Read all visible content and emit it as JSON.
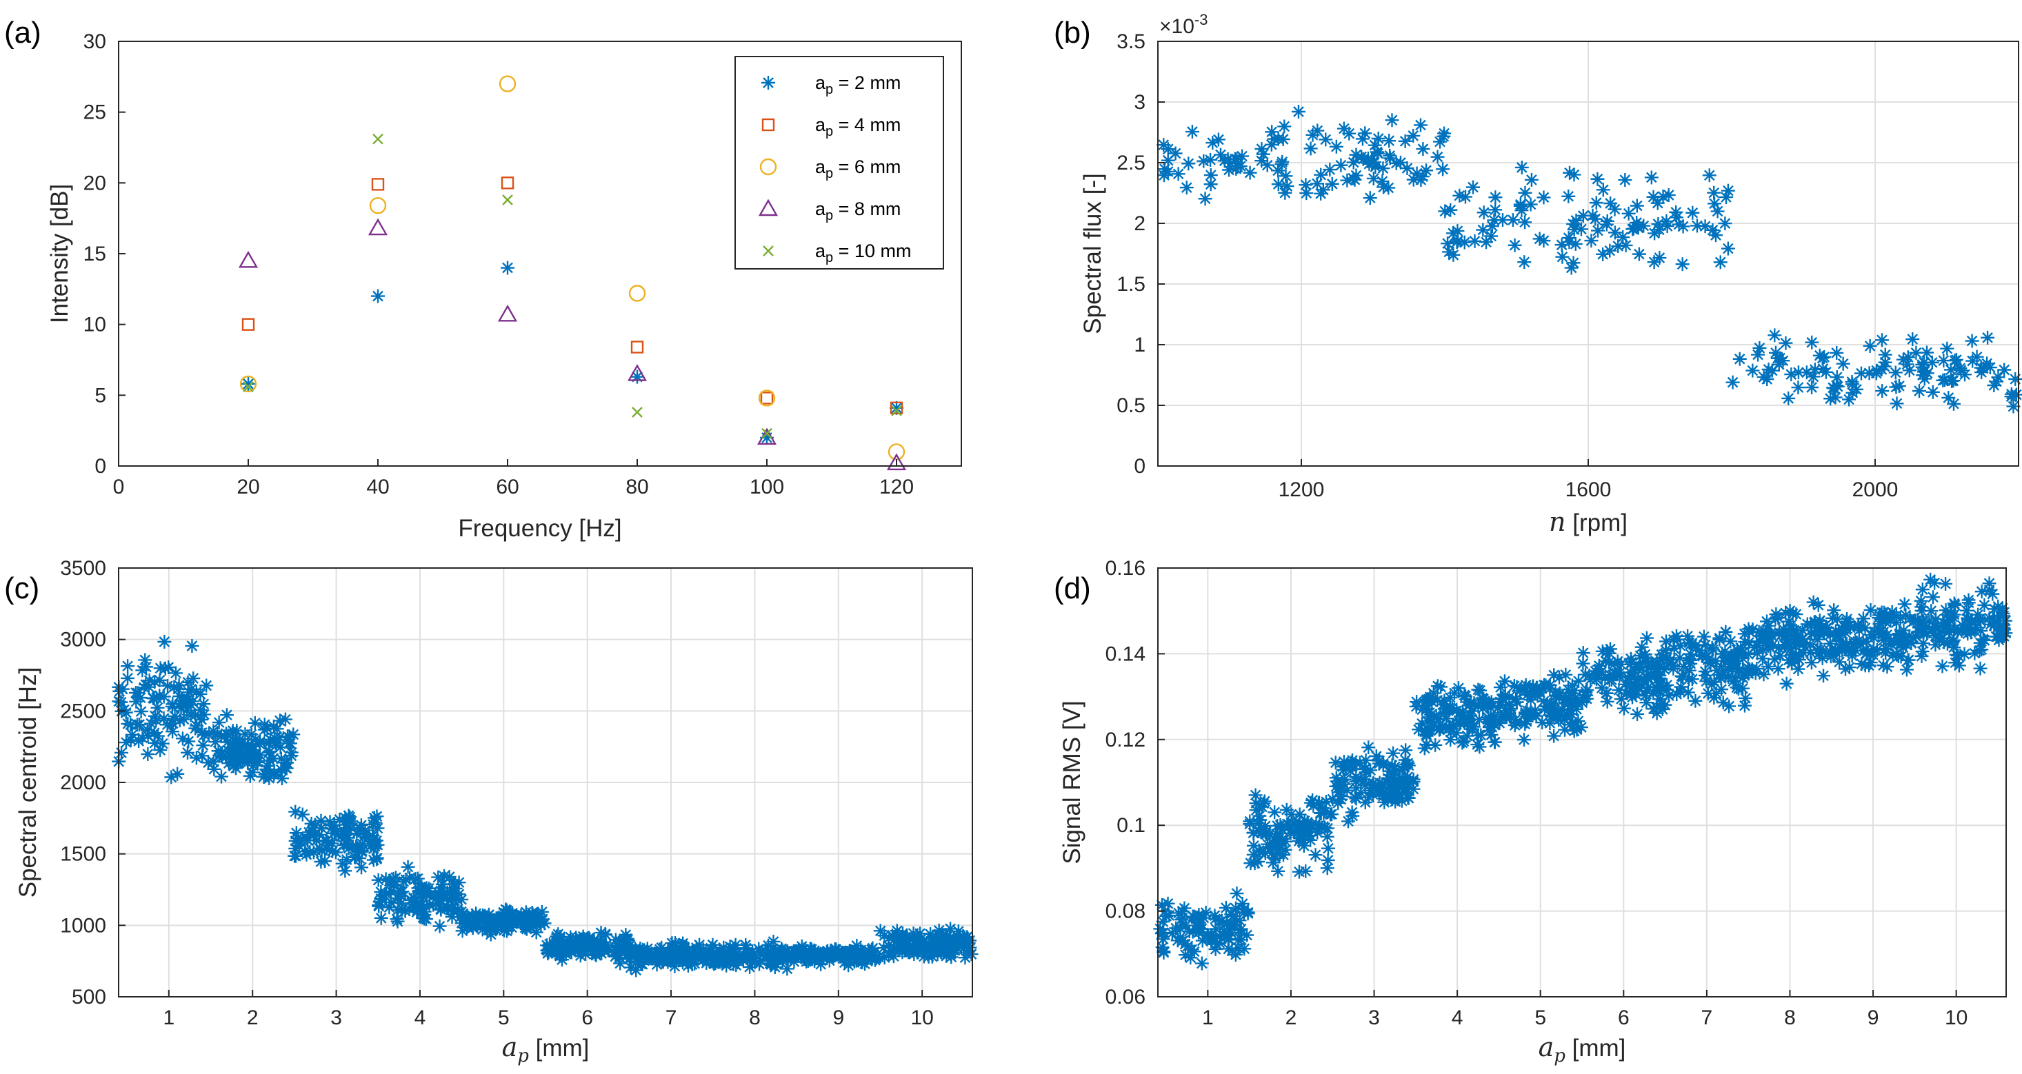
{
  "chart_data": [
    {
      "id": "a",
      "panel_label": "(a)",
      "type": "scatter",
      "title": "",
      "xlabel": "Frequency [Hz]",
      "ylabel": "Intensity [dB]",
      "xlim": [
        0,
        130
      ],
      "ylim": [
        0,
        30
      ],
      "xticks": [
        0,
        20,
        40,
        60,
        80,
        100,
        120
      ],
      "yticks": [
        0,
        5,
        10,
        15,
        20,
        25,
        30
      ],
      "grid": false,
      "legend_position": "top-right",
      "series": [
        {
          "name": "a_p = 2 mm",
          "legend_main": "a",
          "legend_sub": "p",
          "legend_rest": " = 2 mm",
          "marker": "asterisk",
          "color": "#0072BD",
          "x": [
            20,
            40,
            60,
            80,
            100,
            120
          ],
          "y": [
            5.8,
            12.0,
            14.0,
            6.3,
            2.0,
            4.1
          ]
        },
        {
          "name": "a_p = 4 mm",
          "legend_main": "a",
          "legend_sub": "p",
          "legend_rest": " = 4 mm",
          "marker": "square",
          "color": "#D95319",
          "x": [
            20,
            40,
            60,
            80,
            100,
            120
          ],
          "y": [
            10.0,
            19.9,
            20.0,
            8.4,
            4.8,
            4.1
          ]
        },
        {
          "name": "a_p = 6 mm",
          "legend_main": "a",
          "legend_sub": "p",
          "legend_rest": " = 6 mm",
          "marker": "circle",
          "color": "#EDB120",
          "x": [
            20,
            40,
            60,
            80,
            100,
            120
          ],
          "y": [
            5.8,
            18.4,
            27.0,
            12.2,
            4.8,
            1.0
          ]
        },
        {
          "name": "a_p = 8 mm",
          "legend_main": "a",
          "legend_sub": "p",
          "legend_rest": " = 8 mm",
          "marker": "triangle",
          "color": "#7E2F8E",
          "x": [
            20,
            40,
            60,
            80,
            100,
            120
          ],
          "y": [
            14.5,
            16.8,
            10.7,
            6.5,
            2.0,
            0.2
          ]
        },
        {
          "name": "a_p = 10 mm",
          "legend_main": "a",
          "legend_sub": "p",
          "legend_rest": " = 10 mm",
          "marker": "x",
          "color": "#77AC30",
          "x": [
            20,
            40,
            60,
            80,
            100,
            120
          ],
          "y": [
            5.6,
            23.1,
            18.8,
            3.8,
            2.3,
            3.9
          ]
        }
      ]
    },
    {
      "id": "b",
      "panel_label": "(b)",
      "type": "scatter",
      "title": "",
      "xlabel_italic": "n",
      "xlabel_rest": " [rpm]",
      "ylabel": "Spectral flux [-]",
      "exponent_label": "×10",
      "exponent_power": "-3",
      "xlim": [
        1000,
        2200
      ],
      "ylim": [
        0,
        3.5
      ],
      "xticks": [
        1200,
        1600,
        2000
      ],
      "yticks": [
        0,
        0.5,
        1,
        1.5,
        2,
        2.5,
        3,
        3.5
      ],
      "ytick_labels": [
        "0",
        "0.5",
        "1",
        "1.5",
        "2",
        "2.5",
        "3",
        "3.5"
      ],
      "grid": true,
      "marker": "asterisk",
      "color": "#0072BD",
      "clusters": [
        {
          "x_range": [
            1000,
            1400
          ],
          "y_range": [
            2.0,
            3.0
          ],
          "count": 110
        },
        {
          "x_range": [
            1400,
            1800
          ],
          "y_range": [
            1.5,
            2.55
          ],
          "count": 110
        },
        {
          "x_range": [
            1800,
            2200
          ],
          "y_range": [
            0.45,
            1.1
          ],
          "count": 110
        }
      ]
    },
    {
      "id": "c",
      "panel_label": "(c)",
      "type": "scatter",
      "title": "",
      "xlabel_italic": "a",
      "xlabel_sub": "p",
      "xlabel_rest": " [mm]",
      "ylabel": "Spectral centroid [Hz]",
      "xlim": [
        0.4,
        10.6
      ],
      "ylim": [
        500,
        3500
      ],
      "xticks": [
        1,
        2,
        3,
        4,
        5,
        6,
        7,
        8,
        9,
        10
      ],
      "yticks": [
        500,
        1000,
        1500,
        2000,
        2500,
        3000,
        3500
      ],
      "grid": true,
      "marker": "asterisk",
      "color": "#0072BD",
      "clusters": [
        {
          "x_range": [
            0.4,
            1.5
          ],
          "y_range": [
            1950,
            3050
          ],
          "count": 110
        },
        {
          "x_range": [
            1.5,
            2.5
          ],
          "y_range": [
            1900,
            2550
          ],
          "count": 110
        },
        {
          "x_range": [
            2.5,
            3.5
          ],
          "y_range": [
            1300,
            1900
          ],
          "count": 100
        },
        {
          "x_range": [
            3.5,
            4.5
          ],
          "y_range": [
            950,
            1450
          ],
          "count": 110
        },
        {
          "x_range": [
            4.5,
            5.5
          ],
          "y_range": [
            920,
            1150
          ],
          "count": 110
        },
        {
          "x_range": [
            5.5,
            6.5
          ],
          "y_range": [
            720,
            980
          ],
          "count": 110
        },
        {
          "x_range": [
            6.5,
            7.5
          ],
          "y_range": [
            680,
            900
          ],
          "count": 110
        },
        {
          "x_range": [
            7.5,
            8.5
          ],
          "y_range": [
            670,
            900
          ],
          "count": 110
        },
        {
          "x_range": [
            8.5,
            9.5
          ],
          "y_range": [
            700,
            880
          ],
          "count": 110
        },
        {
          "x_range": [
            9.5,
            10.6
          ],
          "y_range": [
            740,
            1010
          ],
          "count": 120
        }
      ]
    },
    {
      "id": "d",
      "panel_label": "(d)",
      "type": "scatter",
      "title": "",
      "xlabel_italic": "a",
      "xlabel_sub": "p",
      "xlabel_rest": " [mm]",
      "ylabel": "Signal RMS [V]",
      "xlim": [
        0.4,
        10.6
      ],
      "ylim": [
        0.06,
        0.16
      ],
      "xticks": [
        1,
        2,
        3,
        4,
        5,
        6,
        7,
        8,
        9,
        10
      ],
      "yticks": [
        0.06,
        0.08,
        0.1,
        0.12,
        0.14,
        0.16
      ],
      "ytick_labels": [
        "0.06",
        "0.08",
        "0.1",
        "0.12",
        "0.14",
        "0.16"
      ],
      "grid": true,
      "marker": "asterisk",
      "color": "#0072BD",
      "clusters": [
        {
          "x_range": [
            0.4,
            1.5
          ],
          "y_range": [
            0.066,
            0.085
          ],
          "count": 100
        },
        {
          "x_range": [
            1.5,
            2.5
          ],
          "y_range": [
            0.086,
            0.11
          ],
          "count": 110
        },
        {
          "x_range": [
            2.5,
            3.5
          ],
          "y_range": [
            0.1,
            0.12
          ],
          "count": 110
        },
        {
          "x_range": [
            3.5,
            4.5
          ],
          "y_range": [
            0.115,
            0.135
          ],
          "count": 110
        },
        {
          "x_range": [
            4.5,
            5.5
          ],
          "y_range": [
            0.118,
            0.138
          ],
          "count": 110
        },
        {
          "x_range": [
            5.5,
            6.5
          ],
          "y_range": [
            0.124,
            0.145
          ],
          "count": 110
        },
        {
          "x_range": [
            6.5,
            7.5
          ],
          "y_range": [
            0.125,
            0.15
          ],
          "count": 110
        },
        {
          "x_range": [
            7.5,
            8.5
          ],
          "y_range": [
            0.13,
            0.155
          ],
          "count": 110
        },
        {
          "x_range": [
            8.5,
            9.5
          ],
          "y_range": [
            0.132,
            0.155
          ],
          "count": 110
        },
        {
          "x_range": [
            9.5,
            10.6
          ],
          "y_range": [
            0.133,
            0.16
          ],
          "count": 120
        }
      ]
    }
  ]
}
